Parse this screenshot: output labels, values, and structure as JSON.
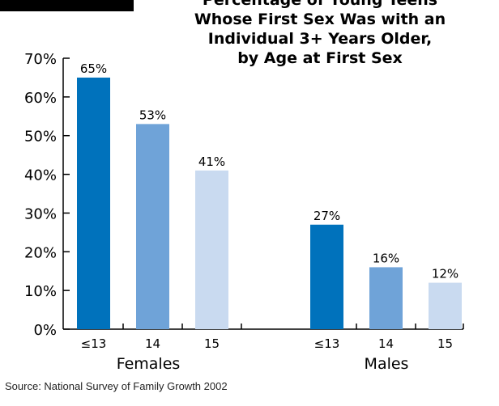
{
  "chart_data": {
    "type": "bar",
    "title_lines": [
      "Percentage of Young Teens",
      "Whose First Sex Was with an",
      "Individual 3+ Years Older,",
      "by Age at First Sex"
    ],
    "ylim": [
      0,
      70
    ],
    "yticks": [
      "0%",
      "10%",
      "20%",
      "30%",
      "40%",
      "50%",
      "60%",
      "70%"
    ],
    "ytick_values": [
      0,
      10,
      20,
      30,
      40,
      50,
      60,
      70
    ],
    "groups": [
      {
        "name": "Females",
        "categories": [
          "≤13",
          "14",
          "15"
        ],
        "values": [
          65,
          53,
          41
        ],
        "labels": [
          "65%",
          "53%",
          "41%"
        ]
      },
      {
        "name": "Males",
        "categories": [
          "≤13",
          "14",
          "15"
        ],
        "values": [
          27,
          16,
          12
        ],
        "labels": [
          "27%",
          "16%",
          "12%"
        ]
      }
    ],
    "colors": [
      "#0072bc",
      "#6fa3d8",
      "#c9daf0"
    ]
  },
  "source": "Source: National Survey of Family Growth 2002"
}
